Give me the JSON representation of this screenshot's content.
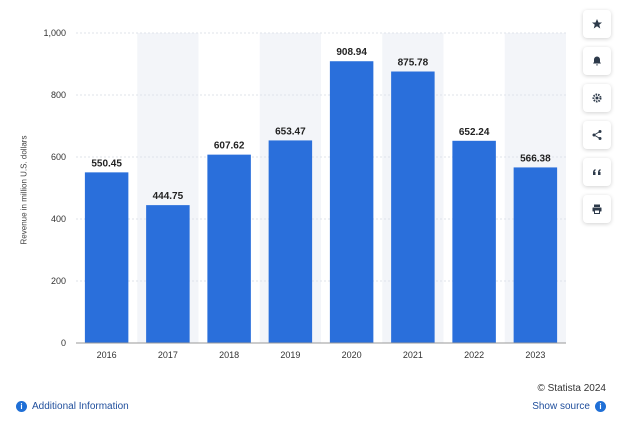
{
  "chart_data": {
    "type": "bar",
    "title": "",
    "xlabel": "",
    "ylabel": "Revenue in million U.S. dollars",
    "categories": [
      "2016",
      "2017",
      "2018",
      "2019",
      "2020",
      "2021",
      "2022",
      "2023"
    ],
    "values": [
      550.45,
      444.75,
      607.62,
      653.47,
      908.94,
      875.78,
      652.24,
      566.38
    ],
    "value_labels": [
      "550.45",
      "444.75",
      "607.62",
      "653.47",
      "908.94",
      "875.78",
      "652.24",
      "566.38"
    ],
    "ylim": [
      0,
      1000
    ],
    "yticks": [
      0,
      200,
      400,
      600,
      800,
      1000
    ],
    "ytick_labels": [
      "0",
      "200",
      "400",
      "600",
      "800",
      "1,000"
    ],
    "grid": true,
    "bar_color": "#2a6fdb"
  },
  "sidebar": {
    "buttons": [
      {
        "name": "star-icon"
      },
      {
        "name": "bell-icon"
      },
      {
        "name": "gear-icon"
      },
      {
        "name": "share-icon"
      },
      {
        "name": "quote-icon"
      },
      {
        "name": "print-icon"
      }
    ]
  },
  "footer": {
    "copyright": "© Statista 2024",
    "additional_info": "Additional Information",
    "show_source": "Show source"
  }
}
